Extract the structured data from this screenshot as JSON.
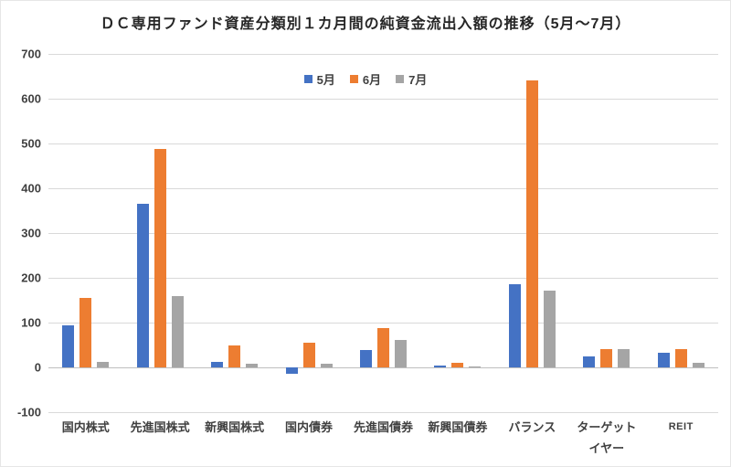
{
  "chart_data": {
    "type": "bar",
    "title": "ＤＣ専用ファンド資産分類別１カ月間の純資金流出入額の推移（5月～7月）",
    "categories": [
      "国内株式",
      "先進国株式",
      "新興国株式",
      "国内債券",
      "先進国債券",
      "新興国債券",
      "バランス",
      "ターゲット\nイヤー",
      "REIT"
    ],
    "series": [
      {
        "name": "5月",
        "color": "#4472C4",
        "values": [
          93,
          365,
          13,
          -15,
          39,
          4,
          185,
          25,
          33
        ]
      },
      {
        "name": "6月",
        "color": "#ED7D31",
        "values": [
          155,
          487,
          50,
          55,
          88,
          10,
          640,
          40,
          40
        ]
      },
      {
        "name": "7月",
        "color": "#A5A5A5",
        "values": [
          13,
          160,
          9,
          9,
          62,
          3,
          172,
          40,
          10
        ]
      }
    ],
    "ylim": [
      -100,
      700
    ],
    "ytick_interval": 100,
    "grid": "horizontal",
    "legend_position": "top-center",
    "gridline_color": "#d9d9d9",
    "axis_line_color": "#bfbfbf",
    "text_color": "#404040",
    "title_color": "#262626"
  }
}
